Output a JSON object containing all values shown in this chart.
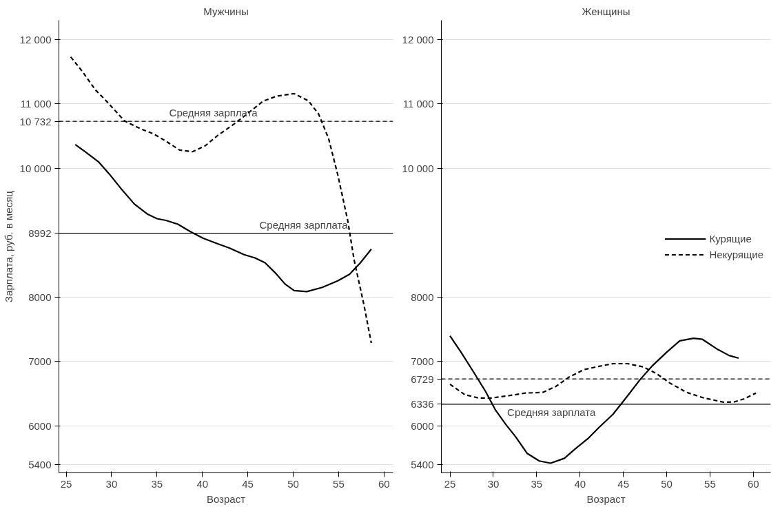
{
  "chart_data": [
    {
      "type": "line",
      "title": "Мужчины",
      "xlabel": "Возраст",
      "ylabel": "Зарплата, руб. в месяц",
      "xlim": [
        24.2,
        61
      ],
      "ylim": [
        5270,
        12300
      ],
      "xticks": [
        25,
        30,
        35,
        40,
        45,
        50,
        55,
        60
      ],
      "yticks": [
        {
          "value": 12000,
          "label": "12 000"
        },
        {
          "value": 11000,
          "label": "11 000"
        },
        {
          "value": 10732,
          "label": "10 732"
        },
        {
          "value": 10000,
          "label": "10 000"
        },
        8992,
        8000,
        7000,
        6000,
        5400
      ],
      "grid": "y",
      "legend": false,
      "series": [
        {
          "color": "#000000",
          "line_style": "solid",
          "x": [
            26.0,
            27.1,
            28.6,
            29.8,
            31.1,
            32.5,
            33.9,
            35.0,
            36.0,
            37.3,
            38.7,
            40.1,
            41.7,
            43.0,
            44.6,
            45.8,
            46.9,
            48.0,
            49.1,
            50.1,
            51.5,
            53.2,
            54.9,
            56.2,
            57.4,
            58.6
          ],
          "values": [
            10370,
            10258,
            10096,
            9904,
            9675,
            9447,
            9294,
            9218,
            9192,
            9132,
            9015,
            8914,
            8827,
            8761,
            8660,
            8609,
            8533,
            8380,
            8203,
            8101,
            8085,
            8151,
            8253,
            8355,
            8533,
            8745
          ]
        },
        {
          "color": "#000000",
          "line_style": "dashed",
          "x": [
            25.5,
            26.8,
            28.2,
            29.6,
            31.4,
            33.2,
            34.6,
            36.0,
            37.5,
            38.9,
            40.3,
            41.7,
            43.5,
            44.9,
            46.7,
            48.2,
            50.1,
            51.7,
            52.8,
            53.9,
            54.9,
            56.0,
            56.7,
            57.8,
            58.6
          ],
          "values": [
            11731,
            11502,
            11223,
            11020,
            10740,
            10614,
            10538,
            10421,
            10284,
            10259,
            10350,
            10513,
            10690,
            10843,
            11046,
            11122,
            11162,
            11046,
            10843,
            10462,
            9904,
            9193,
            8582,
            7872,
            7287
          ]
        }
      ],
      "ref_lines": [
        {
          "axis": "y",
          "value": 10732,
          "label": "Средняя зарплата",
          "line_style": "dashed",
          "color": "#000000"
        },
        {
          "axis": "y",
          "value": 8992,
          "label": "Средняя зарплата",
          "line_style": "solid",
          "color": "#000000"
        }
      ]
    },
    {
      "type": "line",
      "title": "Женщины",
      "xlabel": "Возраст",
      "xlim": [
        24,
        62
      ],
      "ylim": [
        5270,
        12300
      ],
      "xticks": [
        25,
        30,
        35,
        40,
        45,
        50,
        55,
        60
      ],
      "yticks": [
        {
          "value": 12000,
          "label": "12 000"
        },
        {
          "value": 11000,
          "label": "11 000"
        },
        {
          "value": 10000,
          "label": "10 000"
        },
        8000,
        7000,
        6729,
        6336,
        6000,
        5400
      ],
      "grid": "y",
      "legend": "right",
      "series": [
        {
          "name": "Курящие",
          "color": "#000000",
          "line_style": "solid",
          "x": [
            25,
            26.4,
            27.7,
            29.1,
            30.2,
            31.4,
            32.6,
            33.9,
            35.3,
            36.6,
            38.2,
            39.5,
            40.9,
            42.2,
            43.8,
            45.3,
            46.9,
            48.4,
            50.0,
            51.5,
            53.1,
            54.1,
            55.8,
            57.2,
            58.3
          ],
          "values": [
            7397,
            7118,
            6840,
            6535,
            6256,
            6028,
            5825,
            5572,
            5455,
            5420,
            5496,
            5648,
            5800,
            5977,
            6180,
            6434,
            6713,
            6941,
            7144,
            7321,
            7361,
            7346,
            7194,
            7093,
            7052
          ]
        },
        {
          "name": "Некурящие",
          "color": "#000000",
          "line_style": "dashed",
          "x": [
            25,
            26.7,
            28.3,
            29.8,
            31.8,
            33.7,
            35.7,
            37.2,
            38.8,
            40.5,
            42.2,
            43.8,
            45.5,
            47.3,
            48.8,
            50.4,
            52.3,
            54.3,
            56.6,
            57.8,
            58.9,
            60.3
          ],
          "values": [
            6646,
            6484,
            6433,
            6433,
            6469,
            6509,
            6520,
            6611,
            6763,
            6875,
            6925,
            6966,
            6966,
            6915,
            6814,
            6662,
            6520,
            6433,
            6367,
            6372,
            6418,
            6509
          ]
        }
      ],
      "ref_lines": [
        {
          "axis": "y",
          "value": 6729,
          "label": null,
          "line_style": "dashed",
          "color": "#000000"
        },
        {
          "axis": "y",
          "value": 6336,
          "label": "Средняя зарплата",
          "line_style": "solid",
          "color": "#000000"
        }
      ]
    }
  ]
}
